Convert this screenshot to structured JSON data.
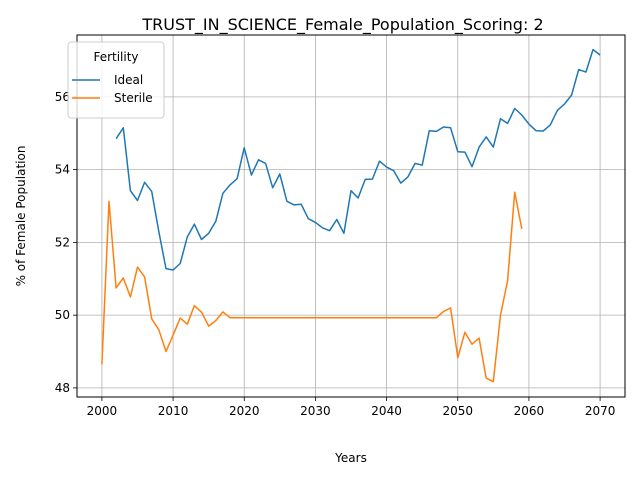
{
  "chart_data": {
    "type": "line",
    "title": "TRUST_IN_SCIENCE_Female_Population_Scoring: 2",
    "xlabel": "Years",
    "ylabel": "% of Female Population",
    "xlim": [
      1996.5,
      2073.5
    ],
    "ylim": [
      47.75,
      57.7
    ],
    "xticks": [
      2000,
      2010,
      2020,
      2030,
      2040,
      2050,
      2060,
      2070
    ],
    "yticks": [
      48,
      50,
      52,
      54,
      56
    ],
    "grid": true,
    "legend": {
      "title": "Fertility",
      "placement": "top-left"
    },
    "series": [
      {
        "name": "Ideal",
        "color": "#1f77b4",
        "x": [
          2002,
          2003,
          2004,
          2005,
          2006,
          2007,
          2008,
          2009,
          2010,
          2011,
          2012,
          2013,
          2014,
          2015,
          2016,
          2017,
          2018,
          2019,
          2020,
          2021,
          2022,
          2023,
          2024,
          2025,
          2026,
          2027,
          2028,
          2029,
          2030,
          2031,
          2032,
          2033,
          2034,
          2035,
          2036,
          2037,
          2038,
          2039,
          2040,
          2041,
          2042,
          2043,
          2044,
          2045,
          2046,
          2047,
          2048,
          2049,
          2050,
          2051,
          2052,
          2053,
          2054,
          2055,
          2056,
          2057,
          2058,
          2059,
          2060,
          2061,
          2062,
          2063,
          2064,
          2065,
          2066,
          2067,
          2068,
          2069,
          2070
        ],
        "values": [
          54.85,
          55.15,
          53.42,
          53.15,
          53.65,
          53.4,
          52.3,
          51.28,
          51.24,
          51.42,
          52.15,
          52.5,
          52.08,
          52.25,
          52.58,
          53.35,
          53.58,
          53.75,
          54.6,
          53.85,
          54.27,
          54.17,
          53.5,
          53.88,
          53.13,
          53.03,
          53.05,
          52.65,
          52.55,
          52.4,
          52.32,
          52.63,
          52.25,
          53.42,
          53.22,
          53.73,
          53.74,
          54.23,
          54.07,
          53.97,
          53.63,
          53.8,
          54.17,
          54.12,
          55.07,
          55.05,
          55.17,
          55.15,
          54.49,
          54.48,
          54.08,
          54.62,
          54.9,
          54.62,
          55.4,
          55.27,
          55.68,
          55.5,
          55.25,
          55.07,
          55.06,
          55.23,
          55.63,
          55.8,
          56.05,
          56.75,
          56.68,
          57.3,
          57.15
        ]
      },
      {
        "name": "Sterile",
        "color": "#ff7f0e",
        "x": [
          2000,
          2001,
          2002,
          2003,
          2004,
          2005,
          2006,
          2007,
          2008,
          2009,
          2010,
          2011,
          2012,
          2013,
          2014,
          2015,
          2016,
          2017,
          2018,
          2019,
          2020,
          2021,
          2022,
          2023,
          2024,
          2025,
          2026,
          2027,
          2028,
          2029,
          2030,
          2031,
          2032,
          2033,
          2034,
          2035,
          2036,
          2037,
          2038,
          2039,
          2040,
          2041,
          2042,
          2043,
          2044,
          2045,
          2046,
          2047,
          2048,
          2049,
          2050,
          2051,
          2052,
          2053,
          2054,
          2055,
          2056,
          2057,
          2058,
          2059
        ],
        "values": [
          48.65,
          53.13,
          50.75,
          51.02,
          50.5,
          51.32,
          51.05,
          49.9,
          49.6,
          49.0,
          49.45,
          49.92,
          49.75,
          50.26,
          50.08,
          49.7,
          49.85,
          50.09,
          49.93,
          49.93,
          49.93,
          49.93,
          49.93,
          49.93,
          49.93,
          49.93,
          49.93,
          49.93,
          49.93,
          49.93,
          49.93,
          49.93,
          49.93,
          49.93,
          49.93,
          49.93,
          49.93,
          49.93,
          49.93,
          49.93,
          49.93,
          49.93,
          49.93,
          49.93,
          49.93,
          49.93,
          49.93,
          49.93,
          50.1,
          50.2,
          48.83,
          49.53,
          49.2,
          49.37,
          48.27,
          48.17,
          50.0,
          50.95,
          53.38,
          52.37
        ]
      }
    ]
  }
}
